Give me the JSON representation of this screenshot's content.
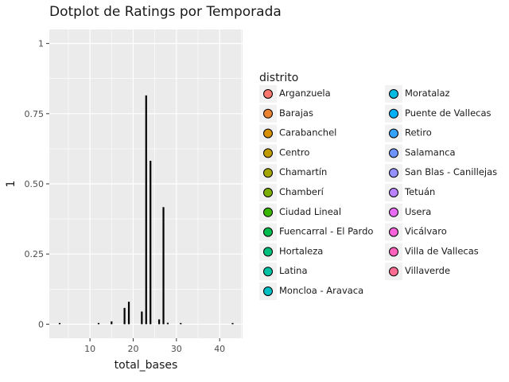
{
  "chart_data": {
    "type": "bar",
    "title": "Dotplot de Ratings por Temporada",
    "xlabel": "total_bases",
    "ylabel": "1",
    "xlim": [
      0.6,
      45.3
    ],
    "ylim": [
      -0.05,
      1.05
    ],
    "x_ticks": [
      10,
      20,
      30,
      40
    ],
    "y_ticks": [
      0,
      0.25,
      0.5,
      0.75,
      1
    ],
    "y_tick_labels": [
      "0",
      "0.25",
      "0.50",
      "0.75",
      "1"
    ],
    "grid": true,
    "legend_title": "distrito",
    "legend_position": "right",
    "legend": [
      {
        "label": "Arganzuela",
        "color": "#f8766d"
      },
      {
        "label": "Barajas",
        "color": "#ea8331"
      },
      {
        "label": "Carabanchel",
        "color": "#d89000"
      },
      {
        "label": "Centro",
        "color": "#c09b00"
      },
      {
        "label": "Chamartín",
        "color": "#a3a500"
      },
      {
        "label": "Chamberí",
        "color": "#7cae00"
      },
      {
        "label": "Ciudad Lineal",
        "color": "#39b600"
      },
      {
        "label": "Fuencarral - El Pardo",
        "color": "#00bb4e"
      },
      {
        "label": "Hortaleza",
        "color": "#00bf7d"
      },
      {
        "label": "Latina",
        "color": "#00c1a3"
      },
      {
        "label": "Moncloa - Aravaca",
        "color": "#00bfc4"
      },
      {
        "label": "Moratalaz",
        "color": "#00bae0"
      },
      {
        "label": "Puente de Vallecas",
        "color": "#00b0f6"
      },
      {
        "label": "Retiro",
        "color": "#35a2ff"
      },
      {
        "label": "Salamanca",
        "color": "#6e94ff"
      },
      {
        "label": "San Blas - Canillejas",
        "color": "#9590ff"
      },
      {
        "label": "Tetuán",
        "color": "#b983ff"
      },
      {
        "label": "Usera",
        "color": "#e76bf3"
      },
      {
        "label": "Vicálvaro",
        "color": "#fa62db"
      },
      {
        "label": "Villa de Vallecas",
        "color": "#ff62bc"
      },
      {
        "label": "Villaverde",
        "color": "#ff6c91"
      }
    ],
    "series": [
      {
        "x": [
          3,
          12,
          15,
          18,
          19,
          22,
          23,
          24,
          26,
          27,
          28,
          31,
          43
        ],
        "values": [
          0.003,
          0.004,
          0.01,
          0.058,
          0.08,
          0.045,
          0.815,
          0.582,
          0.017,
          0.417,
          0.005,
          0.004,
          0.004
        ]
      }
    ]
  }
}
